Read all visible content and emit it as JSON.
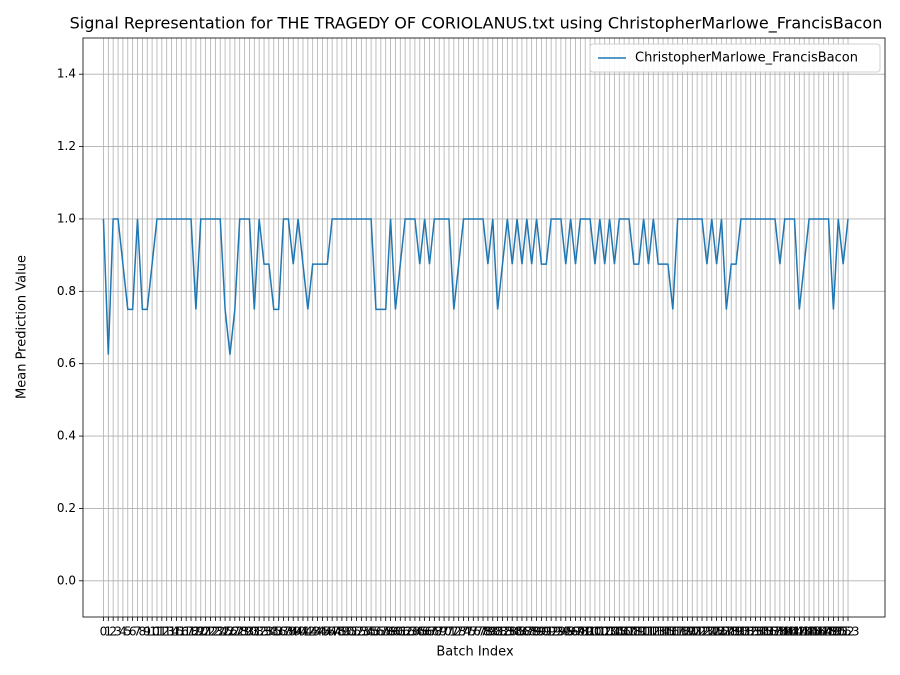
{
  "chart_data": {
    "type": "line",
    "title": "Signal Representation for THE TRAGEDY OF CORIOLANUS.txt using ChristopherMarlowe_FrancisBacon",
    "xlabel": "Batch Index",
    "ylabel": "Mean Prediction Value",
    "x": [
      0,
      1,
      2,
      3,
      4,
      5,
      6,
      7,
      8,
      9,
      10,
      11,
      12,
      13,
      14,
      15,
      16,
      17,
      18,
      19,
      20,
      21,
      22,
      23,
      24,
      25,
      26,
      27,
      28,
      29,
      30,
      31,
      32,
      33,
      34,
      35,
      36,
      37,
      38,
      39,
      40,
      41,
      42,
      43,
      44,
      45,
      46,
      47,
      48,
      49,
      50,
      51,
      52,
      53,
      54,
      55,
      56,
      57,
      58,
      59,
      60,
      61,
      62,
      63,
      64,
      65,
      66,
      67,
      68,
      69,
      70,
      71,
      72,
      73,
      74,
      75,
      76,
      77,
      78,
      79,
      80,
      81,
      82,
      83,
      84,
      85,
      86,
      87,
      88,
      89,
      90,
      91,
      92,
      93,
      94,
      95,
      96,
      97,
      98,
      99,
      100,
      101,
      102,
      103,
      104,
      105,
      106,
      107,
      108,
      109,
      110,
      111,
      112,
      113,
      114,
      115,
      116,
      117,
      118,
      119,
      120,
      121,
      122,
      123,
      124,
      125,
      126,
      127,
      128,
      129,
      130,
      131,
      132,
      133,
      134,
      135,
      136,
      137,
      138,
      139,
      140,
      141,
      142,
      143,
      144,
      145,
      146,
      147,
      148,
      149,
      150,
      151,
      152,
      153
    ],
    "series": [
      {
        "name": "ChristopherMarlowe_FrancisBacon",
        "color": "#1f77b4",
        "values": [
          1,
          0.625,
          1,
          1,
          0.875,
          0.75,
          0.75,
          1,
          0.75,
          0.75,
          0.875,
          1,
          1,
          1,
          1,
          1,
          1,
          1,
          1,
          0.75,
          1,
          1,
          1,
          1,
          1,
          0.75,
          0.625,
          0.75,
          1,
          1,
          1,
          0.75,
          1,
          0.875,
          0.875,
          0.75,
          0.75,
          1,
          1,
          0.875,
          1,
          0.875,
          0.75,
          0.875,
          0.875,
          0.875,
          0.875,
          1,
          1,
          1,
          1,
          1,
          1,
          1,
          1,
          1,
          0.75,
          0.75,
          0.75,
          1,
          0.75,
          0.875,
          1,
          1,
          1,
          0.875,
          1,
          0.875,
          1,
          1,
          1,
          1,
          0.75,
          0.875,
          1,
          1,
          1,
          1,
          1,
          0.875,
          1,
          0.75,
          0.875,
          1,
          0.875,
          1,
          0.875,
          1,
          0.875,
          1,
          0.875,
          0.875,
          1,
          1,
          1,
          0.875,
          1,
          0.875,
          1,
          1,
          1,
          0.875,
          1,
          0.875,
          1,
          0.875,
          1,
          1,
          1,
          0.875,
          0.875,
          1,
          0.875,
          1,
          0.875,
          0.875,
          0.875,
          0.75,
          1,
          1,
          1,
          1,
          1,
          1,
          0.875,
          1,
          0.875,
          1,
          0.75,
          0.875,
          0.875,
          1,
          1,
          1,
          1,
          1,
          1,
          1,
          1,
          0.875,
          1,
          1,
          1,
          0.75,
          0.875,
          1,
          1,
          1,
          1,
          1,
          0.75,
          1,
          0.875,
          1
        ]
      }
    ],
    "xlim": [
      -4.2,
      160.6
    ],
    "xticks": [
      0,
      1,
      2,
      3,
      4,
      5,
      6,
      7,
      8,
      9,
      10,
      11,
      12,
      13,
      14,
      15,
      16,
      17,
      18,
      19,
      20,
      21,
      22,
      23,
      24,
      25,
      26,
      27,
      28,
      29,
      30,
      31,
      32,
      33,
      34,
      35,
      36,
      37,
      38,
      39,
      40,
      41,
      42,
      43,
      44,
      45,
      46,
      47,
      48,
      49,
      50,
      51,
      52,
      53,
      54,
      55,
      56,
      57,
      58,
      59,
      60,
      61,
      62,
      63,
      64,
      65,
      66,
      67,
      68,
      69,
      70,
      71,
      72,
      73,
      74,
      75,
      76,
      77,
      78,
      79,
      80,
      81,
      82,
      83,
      84,
      85,
      86,
      87,
      88,
      89,
      90,
      91,
      92,
      93,
      94,
      95,
      96,
      97,
      98,
      99,
      100,
      101,
      102,
      103,
      104,
      105,
      106,
      107,
      108,
      109,
      110,
      111,
      112,
      113,
      114,
      115,
      116,
      117,
      118,
      119,
      120,
      121,
      122,
      123,
      124,
      125,
      126,
      127,
      128,
      129,
      130,
      131,
      132,
      133,
      134,
      135,
      136,
      137,
      138,
      139,
      140,
      141,
      142,
      143,
      144,
      145,
      146,
      147,
      148,
      149,
      150,
      151,
      152,
      153
    ],
    "ylim": [
      -0.1,
      1.5
    ],
    "yticks": [
      0.0,
      0.2,
      0.4,
      0.6,
      0.8,
      1.0,
      1.2,
      1.4
    ],
    "grid": true,
    "legend": "upper right"
  }
}
